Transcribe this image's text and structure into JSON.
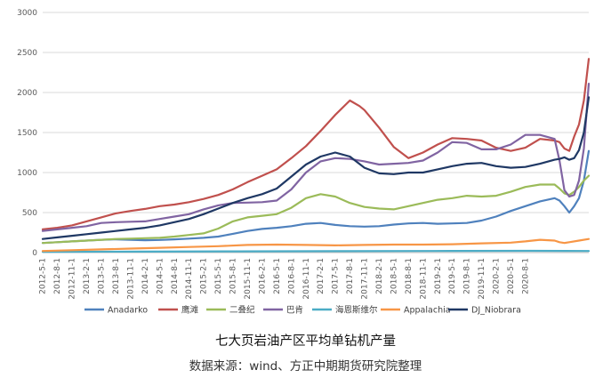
{
  "chart_data": {
    "type": "line",
    "title": "",
    "xlabel": "",
    "ylabel": "",
    "ylim": [
      0,
      3000
    ],
    "yticks": [
      0,
      500,
      1000,
      1500,
      2000,
      2500,
      3000
    ],
    "grid": true,
    "legend_position": "bottom",
    "x_tick_labels": [
      "2012-5-1",
      "2012-8-1",
      "2012-11-1",
      "2013-2-1",
      "2013-5-1",
      "2013-8-1",
      "2013-11-1",
      "2014-2-1",
      "2014-5-1",
      "2014-8-1",
      "2014-11-1",
      "2015-2-1",
      "2015-5-1",
      "2015-8-1",
      "2015-11-1",
      "2016-2-1",
      "2016-5-1",
      "2016-8-1",
      "2016-11-1",
      "2017-2-1",
      "2017-5-1",
      "2017-8-1",
      "2017-11-1",
      "2018-2-1",
      "2018-5-1",
      "2018-8-1",
      "2018-11-1",
      "2019-2-1",
      "2019-5-1",
      "2019-8-1",
      "2019-11-1",
      "2020-2-1",
      "2020-5-1",
      "2020-8-1"
    ],
    "series": [
      {
        "name": "Anadarko",
        "color": "#4f81bd",
        "points": [
          [
            0,
            120
          ],
          [
            3,
            130
          ],
          [
            6,
            140
          ],
          [
            9,
            150
          ],
          [
            12,
            160
          ],
          [
            15,
            165
          ],
          [
            18,
            160
          ],
          [
            21,
            155
          ],
          [
            24,
            158
          ],
          [
            27,
            165
          ],
          [
            30,
            175
          ],
          [
            33,
            185
          ],
          [
            36,
            200
          ],
          [
            39,
            235
          ],
          [
            42,
            270
          ],
          [
            45,
            295
          ],
          [
            48,
            310
          ],
          [
            51,
            330
          ],
          [
            54,
            360
          ],
          [
            57,
            370
          ],
          [
            60,
            345
          ],
          [
            63,
            330
          ],
          [
            66,
            325
          ],
          [
            69,
            330
          ],
          [
            72,
            350
          ],
          [
            75,
            365
          ],
          [
            78,
            370
          ],
          [
            81,
            360
          ],
          [
            84,
            365
          ],
          [
            87,
            370
          ],
          [
            90,
            400
          ],
          [
            93,
            450
          ],
          [
            96,
            520
          ],
          [
            99,
            580
          ],
          [
            102,
            640
          ],
          [
            105,
            680
          ],
          [
            106,
            650
          ],
          [
            107,
            580
          ],
          [
            108,
            500
          ],
          [
            109,
            580
          ],
          [
            110,
            680
          ],
          [
            111,
            900
          ],
          [
            112,
            1270
          ]
        ]
      },
      {
        "name": "鹰滩",
        "color": "#c0504d",
        "points": [
          [
            0,
            290
          ],
          [
            3,
            310
          ],
          [
            6,
            340
          ],
          [
            9,
            390
          ],
          [
            12,
            440
          ],
          [
            15,
            490
          ],
          [
            18,
            520
          ],
          [
            21,
            545
          ],
          [
            24,
            580
          ],
          [
            27,
            600
          ],
          [
            30,
            630
          ],
          [
            33,
            670
          ],
          [
            36,
            720
          ],
          [
            39,
            790
          ],
          [
            42,
            880
          ],
          [
            45,
            960
          ],
          [
            48,
            1040
          ],
          [
            51,
            1180
          ],
          [
            54,
            1330
          ],
          [
            57,
            1520
          ],
          [
            60,
            1720
          ],
          [
            62,
            1840
          ],
          [
            63,
            1900
          ],
          [
            65,
            1830
          ],
          [
            66,
            1780
          ],
          [
            69,
            1560
          ],
          [
            72,
            1320
          ],
          [
            75,
            1180
          ],
          [
            78,
            1250
          ],
          [
            81,
            1350
          ],
          [
            84,
            1430
          ],
          [
            87,
            1420
          ],
          [
            90,
            1400
          ],
          [
            93,
            1310
          ],
          [
            96,
            1270
          ],
          [
            99,
            1310
          ],
          [
            102,
            1420
          ],
          [
            105,
            1400
          ],
          [
            106,
            1380
          ],
          [
            107,
            1300
          ],
          [
            108,
            1270
          ],
          [
            109,
            1450
          ],
          [
            110,
            1600
          ],
          [
            111,
            1900
          ],
          [
            112,
            2420
          ]
        ]
      },
      {
        "name": "二叠纪",
        "color": "#9bbb59",
        "points": [
          [
            0,
            120
          ],
          [
            3,
            130
          ],
          [
            6,
            140
          ],
          [
            9,
            150
          ],
          [
            12,
            160
          ],
          [
            15,
            170
          ],
          [
            18,
            175
          ],
          [
            21,
            180
          ],
          [
            24,
            185
          ],
          [
            27,
            200
          ],
          [
            30,
            220
          ],
          [
            33,
            240
          ],
          [
            36,
            300
          ],
          [
            39,
            390
          ],
          [
            42,
            440
          ],
          [
            45,
            460
          ],
          [
            48,
            480
          ],
          [
            51,
            560
          ],
          [
            54,
            680
          ],
          [
            57,
            730
          ],
          [
            60,
            700
          ],
          [
            63,
            620
          ],
          [
            66,
            570
          ],
          [
            69,
            550
          ],
          [
            72,
            540
          ],
          [
            75,
            580
          ],
          [
            78,
            620
          ],
          [
            81,
            660
          ],
          [
            84,
            680
          ],
          [
            87,
            710
          ],
          [
            90,
            700
          ],
          [
            93,
            710
          ],
          [
            96,
            760
          ],
          [
            99,
            820
          ],
          [
            102,
            850
          ],
          [
            105,
            850
          ],
          [
            106,
            800
          ],
          [
            107,
            740
          ],
          [
            108,
            720
          ],
          [
            109,
            760
          ],
          [
            110,
            820
          ],
          [
            111,
            900
          ],
          [
            112,
            960
          ]
        ]
      },
      {
        "name": "巴肯",
        "color": "#8064a2",
        "points": [
          [
            0,
            270
          ],
          [
            3,
            290
          ],
          [
            6,
            310
          ],
          [
            9,
            330
          ],
          [
            12,
            370
          ],
          [
            15,
            380
          ],
          [
            18,
            385
          ],
          [
            21,
            390
          ],
          [
            24,
            420
          ],
          [
            27,
            450
          ],
          [
            30,
            480
          ],
          [
            33,
            540
          ],
          [
            36,
            590
          ],
          [
            39,
            620
          ],
          [
            42,
            625
          ],
          [
            45,
            630
          ],
          [
            48,
            650
          ],
          [
            51,
            790
          ],
          [
            54,
            1000
          ],
          [
            57,
            1140
          ],
          [
            60,
            1180
          ],
          [
            63,
            1170
          ],
          [
            66,
            1140
          ],
          [
            69,
            1100
          ],
          [
            72,
            1110
          ],
          [
            75,
            1120
          ],
          [
            78,
            1150
          ],
          [
            81,
            1250
          ],
          [
            84,
            1380
          ],
          [
            87,
            1370
          ],
          [
            90,
            1290
          ],
          [
            93,
            1290
          ],
          [
            96,
            1350
          ],
          [
            99,
            1470
          ],
          [
            102,
            1470
          ],
          [
            105,
            1420
          ],
          [
            106,
            1150
          ],
          [
            107,
            780
          ],
          [
            108,
            700
          ],
          [
            109,
            720
          ],
          [
            110,
            900
          ],
          [
            111,
            1300
          ],
          [
            112,
            2110
          ]
        ]
      },
      {
        "name": "海恩斯维尔",
        "color": "#4bacc6",
        "points": [
          [
            0,
            10
          ],
          [
            20,
            12
          ],
          [
            40,
            15
          ],
          [
            60,
            18
          ],
          [
            80,
            20
          ],
          [
            100,
            22
          ],
          [
            112,
            20
          ]
        ]
      },
      {
        "name": "Appalachia",
        "color": "#f79646",
        "points": [
          [
            0,
            20
          ],
          [
            6,
            30
          ],
          [
            12,
            40
          ],
          [
            18,
            50
          ],
          [
            24,
            60
          ],
          [
            30,
            70
          ],
          [
            36,
            80
          ],
          [
            42,
            95
          ],
          [
            48,
            100
          ],
          [
            54,
            95
          ],
          [
            60,
            90
          ],
          [
            66,
            95
          ],
          [
            72,
            100
          ],
          [
            78,
            100
          ],
          [
            84,
            105
          ],
          [
            90,
            115
          ],
          [
            96,
            125
          ],
          [
            99,
            140
          ],
          [
            102,
            160
          ],
          [
            105,
            150
          ],
          [
            106,
            130
          ],
          [
            107,
            120
          ],
          [
            108,
            130
          ],
          [
            110,
            150
          ],
          [
            112,
            170
          ]
        ]
      },
      {
        "name": "DJ_Niobrara",
        "color": "#1f3864",
        "points": [
          [
            0,
            170
          ],
          [
            3,
            190
          ],
          [
            6,
            210
          ],
          [
            9,
            230
          ],
          [
            12,
            250
          ],
          [
            15,
            270
          ],
          [
            18,
            290
          ],
          [
            21,
            310
          ],
          [
            24,
            340
          ],
          [
            27,
            380
          ],
          [
            30,
            420
          ],
          [
            33,
            480
          ],
          [
            36,
            550
          ],
          [
            39,
            620
          ],
          [
            42,
            680
          ],
          [
            45,
            730
          ],
          [
            48,
            800
          ],
          [
            51,
            950
          ],
          [
            54,
            1100
          ],
          [
            57,
            1200
          ],
          [
            60,
            1250
          ],
          [
            63,
            1200
          ],
          [
            66,
            1060
          ],
          [
            69,
            990
          ],
          [
            72,
            980
          ],
          [
            75,
            1000
          ],
          [
            78,
            1000
          ],
          [
            81,
            1040
          ],
          [
            84,
            1080
          ],
          [
            87,
            1110
          ],
          [
            90,
            1120
          ],
          [
            93,
            1080
          ],
          [
            96,
            1060
          ],
          [
            99,
            1070
          ],
          [
            102,
            1110
          ],
          [
            105,
            1160
          ],
          [
            106,
            1170
          ],
          [
            107,
            1190
          ],
          [
            108,
            1160
          ],
          [
            109,
            1180
          ],
          [
            110,
            1280
          ],
          [
            111,
            1500
          ],
          [
            112,
            1940
          ]
        ]
      }
    ]
  },
  "caption": {
    "title": "七大页岩油产区平均单钻机产量",
    "source": "数据来源：wind、方正中期期货研究院整理"
  }
}
